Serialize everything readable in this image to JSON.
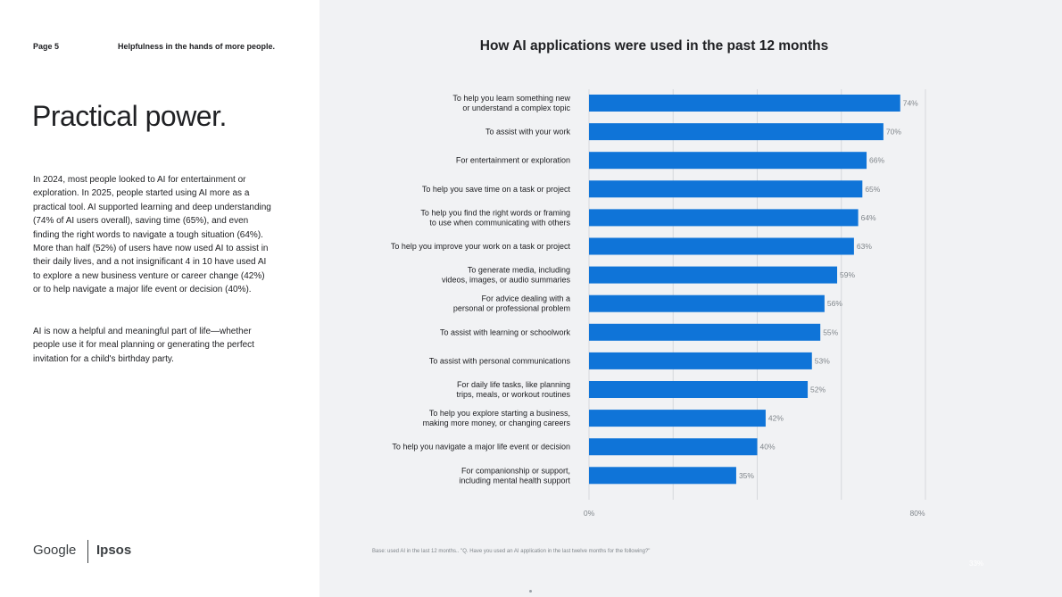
{
  "page": {
    "page_number": "Page 5",
    "running_title": "Helpfulness in the hands of more people.",
    "headline": "Practical power.",
    "paragraphs": [
      "In 2024, most people looked to AI for entertainment or exploration. In 2025, people started using AI more as a practical tool. AI supported learning and deep understanding (74% of AI users overall), saving time (65%), and even finding the right words to navigate a tough situation (64%). More than half (52%) of users have now used AI to assist in their daily lives, and a not insignificant 4 in 10 have used AI to explore a new business venture or career change (42%) or to help navigate a major life event or decision (40%).",
      "AI is now a helpful and meaningful part of life—whether people use it for meal planning or generating the perfect invitation for a child's birthday party."
    ],
    "logos": {
      "google": "Google",
      "ipsos": "Ipsos"
    },
    "footnote": "Base: used AI in the last 12 months.. \"Q. Have you used an AI application in the last twelve months for the following?\"",
    "corner_mark": "33%"
  },
  "colors": {
    "bar": "#0f74d8",
    "grid": "#d6d8dc",
    "right_background": "#f1f2f4"
  },
  "chart_data": {
    "type": "bar",
    "orientation": "horizontal",
    "title": "How AI applications were used in the past 12 months",
    "xlabel": "",
    "ylabel": "",
    "xlim": [
      0,
      80
    ],
    "x_tick_labels": [
      "0%",
      "80%"
    ],
    "grid": true,
    "unit": "%",
    "categories": [
      [
        "To help you learn something new",
        "or understand a complex topic"
      ],
      [
        "To assist with your work"
      ],
      [
        "For entertainment or exploration"
      ],
      [
        "To help you save time on a task or project"
      ],
      [
        "To help you find the right words or framing",
        "to use when communicating with others"
      ],
      [
        "To help you improve your work on a task or project"
      ],
      [
        "To generate media, including",
        "videos, images, or audio summaries"
      ],
      [
        "For advice dealing with a",
        "personal or professional problem"
      ],
      [
        "To assist with learning or schoolwork"
      ],
      [
        "To assist with personal communications"
      ],
      [
        "For daily life tasks, like planning",
        "trips, meals, or workout routines"
      ],
      [
        "To help you explore starting a business,",
        "making more money, or changing careers"
      ],
      [
        "To help you navigate a major life event or decision"
      ],
      [
        "For companionship or support,",
        "including mental health support"
      ]
    ],
    "values": [
      74,
      70,
      66,
      65,
      64,
      63,
      59,
      56,
      55,
      53,
      52,
      42,
      40,
      35
    ]
  }
}
